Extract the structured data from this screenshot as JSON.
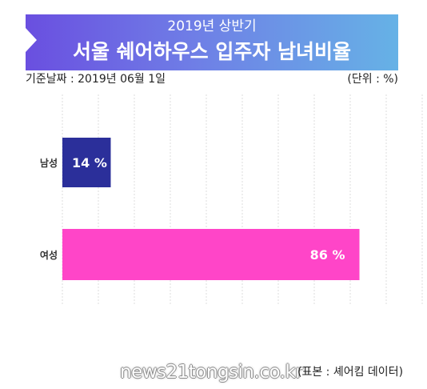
{
  "header": {
    "subtitle": "2019년 상반기",
    "title": "서울 쉐어하우스 입주자 남녀비율"
  },
  "basis_date": "기준날짜 : 2019년 06월 1일",
  "unit": "(단위 : %)",
  "source": "(표본 : 셰어킴 데이터)",
  "watermark": "news21tongsin.co.kr",
  "colors": {
    "male": "#2b2f9a",
    "female": "#ff45c8",
    "banner_start": "#6a4fe0",
    "banner_end": "#66b2e6"
  },
  "chart_data": {
    "type": "bar",
    "orientation": "horizontal",
    "categories": [
      "남성",
      "여성"
    ],
    "values": [
      14,
      86
    ],
    "data_labels": [
      "14 %",
      "86 %"
    ],
    "xlim": [
      0,
      100
    ],
    "grid": true,
    "unit": "%"
  }
}
